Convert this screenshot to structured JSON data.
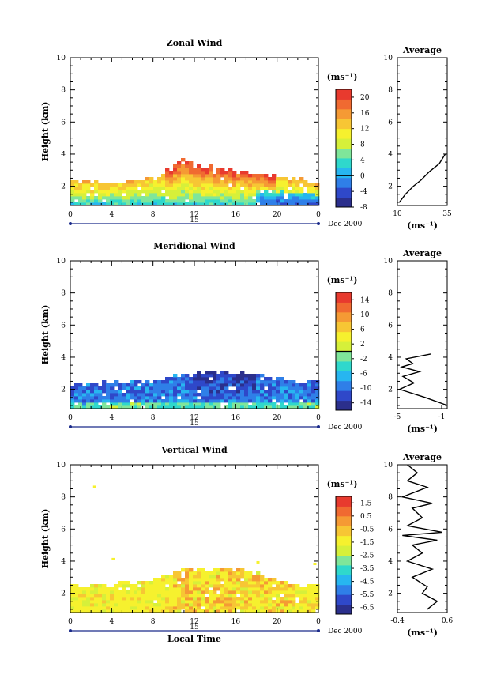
{
  "colors": {
    "ramp": [
      "#2b2f8c",
      "#2f48c9",
      "#2f7fe8",
      "#27b6f0",
      "#2fd8cc",
      "#7fe69a",
      "#d6f03a",
      "#f6f12e",
      "#f7c634",
      "#f59a34",
      "#f06a31",
      "#e83a2e",
      "#e8e04a"
    ]
  },
  "chart_data": [
    {
      "id": "zonal",
      "type": "heatmap",
      "title": "Zonal Wind",
      "ylabel": "Height (km)",
      "xticks": [
        "0",
        "4",
        "8",
        "12",
        "16",
        "20",
        "0"
      ],
      "xlim": [
        0,
        24
      ],
      "day_label": "15",
      "month_label": "Dec 2000",
      "ylim": [
        0.8,
        10
      ],
      "yticks": [
        "2",
        "4",
        "6",
        "8",
        "10"
      ],
      "units": "(ms⁻¹)",
      "colorbar": {
        "min": -8,
        "max": 22,
        "labels": [
          "-8",
          "-4",
          "0",
          "4",
          "8",
          "12",
          "16",
          "20"
        ],
        "line_at": 0
      },
      "field": {
        "top_profile": [
          [
            0,
            2.2
          ],
          [
            4,
            2.3
          ],
          [
            8,
            2.5
          ],
          [
            10,
            3.2
          ],
          [
            11,
            3.8
          ],
          [
            12,
            3.2
          ],
          [
            14,
            3.1
          ],
          [
            16,
            3.0
          ],
          [
            18,
            2.9
          ],
          [
            20,
            2.6
          ],
          [
            22,
            2.4
          ],
          [
            24,
            2.3
          ]
        ],
        "dominant": "positive"
      },
      "average": {
        "title": "Average",
        "xlabel": "(ms⁻¹)",
        "xticks": [
          "10",
          "35"
        ],
        "xlim": [
          10,
          35
        ],
        "ylim": [
          0.8,
          10
        ],
        "yticks": [
          "2",
          "4",
          "6",
          "8",
          "10"
        ],
        "profile": [
          [
            11,
            1.0
          ],
          [
            14,
            1.5
          ],
          [
            18,
            2.0
          ],
          [
            22,
            2.4
          ],
          [
            26,
            2.9
          ],
          [
            29,
            3.2
          ],
          [
            31,
            3.4
          ],
          [
            32,
            3.6
          ],
          [
            33,
            3.8
          ],
          [
            34,
            4.0
          ]
        ]
      }
    },
    {
      "id": "meridional",
      "type": "heatmap",
      "title": "Meridional Wind",
      "ylabel": "Height (km)",
      "xticks": [
        "0",
        "4",
        "8",
        "12",
        "16",
        "20",
        "0"
      ],
      "xlim": [
        0,
        24
      ],
      "day_label": "15",
      "month_label": "Dec 2000",
      "ylim": [
        0.8,
        10
      ],
      "yticks": [
        "2",
        "4",
        "6",
        "8",
        "10"
      ],
      "units": "(ms⁻¹)",
      "colorbar": {
        "min": -16,
        "max": 16,
        "labels": [
          "-14",
          "-10",
          "-6",
          "-2",
          "2",
          "6",
          "10",
          "14"
        ],
        "line_at": 0
      },
      "field": {
        "top_profile": [
          [
            0,
            2.3
          ],
          [
            4,
            2.4
          ],
          [
            8,
            2.5
          ],
          [
            10,
            2.8
          ],
          [
            12,
            3.0
          ],
          [
            14,
            3.0
          ],
          [
            16,
            3.1
          ],
          [
            18,
            2.9
          ],
          [
            20,
            2.7
          ],
          [
            22,
            2.5
          ],
          [
            24,
            2.6
          ]
        ],
        "dominant": "negative"
      },
      "average": {
        "title": "Average",
        "xlabel": "(ms⁻¹)",
        "xticks": [
          "-5",
          "-1"
        ],
        "xlim": [
          -5,
          -0.5
        ],
        "ylim": [
          0.8,
          10
        ],
        "yticks": [
          "2",
          "4",
          "6",
          "8",
          "10"
        ],
        "profile": [
          [
            -0.5,
            1.0
          ],
          [
            -2.5,
            1.5
          ],
          [
            -4.8,
            2.0
          ],
          [
            -3.5,
            2.4
          ],
          [
            -4.5,
            2.8
          ],
          [
            -3.0,
            3.1
          ],
          [
            -4.6,
            3.4
          ],
          [
            -3.6,
            3.6
          ],
          [
            -4.2,
            3.9
          ],
          [
            -2.0,
            4.2
          ]
        ]
      }
    },
    {
      "id": "vertical",
      "type": "heatmap",
      "title": "Vertical Wind",
      "ylabel": "Height (km)",
      "xticks": [
        "0",
        "4",
        "8",
        "12",
        "16",
        "20",
        "0"
      ],
      "xlim": [
        0,
        24
      ],
      "day_label": "15",
      "month_label": "Dec 2000",
      "xlabel": "Local Time",
      "ylim": [
        0.8,
        10
      ],
      "yticks": [
        "2",
        "4",
        "6",
        "8",
        "10"
      ],
      "units": "(ms⁻¹)",
      "colorbar": {
        "min": -7,
        "max": 2,
        "labels": [
          "-6.5",
          "-5.5",
          "-4.5",
          "-3.5",
          "-2.5",
          "-1.5",
          "-0.5",
          "0.5",
          "1.5"
        ],
        "line_at": null
      },
      "field": {
        "top_profile": [
          [
            0,
            2.4
          ],
          [
            4,
            2.5
          ],
          [
            8,
            2.8
          ],
          [
            10,
            3.4
          ],
          [
            12,
            3.4
          ],
          [
            14,
            3.5
          ],
          [
            16,
            3.5
          ],
          [
            18,
            3.2
          ],
          [
            20,
            2.8
          ],
          [
            22,
            2.5
          ],
          [
            24,
            2.6
          ]
        ],
        "dominant": "near-zero"
      },
      "average": {
        "title": "Average",
        "xlabel": "(ms⁻¹)",
        "xticks": [
          "-0.4",
          "0.6"
        ],
        "xlim": [
          -0.4,
          0.6
        ],
        "ylim": [
          0.8,
          10
        ],
        "yticks": [
          "2",
          "4",
          "6",
          "8",
          "10"
        ],
        "profile": [
          [
            0.2,
            1.0
          ],
          [
            0.4,
            1.5
          ],
          [
            0.1,
            2.0
          ],
          [
            0.2,
            2.4
          ],
          [
            -0.1,
            3.0
          ],
          [
            0.3,
            3.5
          ],
          [
            -0.2,
            4.0
          ],
          [
            0.1,
            4.5
          ],
          [
            -0.1,
            5.0
          ],
          [
            0.4,
            5.3
          ],
          [
            -0.3,
            5.6
          ],
          [
            0.5,
            5.8
          ],
          [
            -0.2,
            6.2
          ],
          [
            0.1,
            6.7
          ],
          [
            -0.1,
            7.3
          ],
          [
            0.3,
            7.6
          ],
          [
            -0.3,
            8.0
          ],
          [
            0.2,
            8.6
          ],
          [
            -0.2,
            9.0
          ],
          [
            0.0,
            9.5
          ],
          [
            -0.2,
            10.0
          ]
        ]
      }
    }
  ]
}
